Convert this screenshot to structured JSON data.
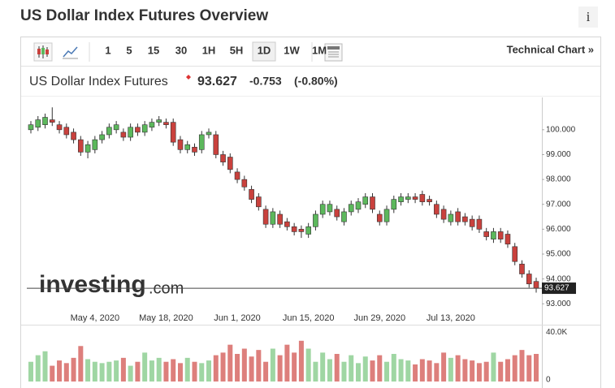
{
  "header": {
    "title": "US Dollar Index Futures Overview",
    "info_icon": "i"
  },
  "toolbar": {
    "intervals": [
      "1",
      "5",
      "15",
      "30",
      "1H",
      "5H",
      "1D",
      "1W",
      "1M"
    ],
    "active": "1D",
    "link": "Technical Chart »"
  },
  "quote": {
    "name": "US Dollar Index Futures",
    "change": "-0.753",
    "change_pct": "(-0.80%)"
  },
  "watermark": {
    "brand": "investing",
    "suffix": ".com"
  },
  "chart_data": {
    "type": "candlestick",
    "categories": [
      null,
      null,
      null,
      null,
      null,
      null,
      null,
      null,
      null,
      "May 4, 2020",
      null,
      null,
      null,
      null,
      null,
      null,
      null,
      null,
      null,
      "May 18, 2020",
      null,
      null,
      null,
      null,
      null,
      null,
      null,
      null,
      null,
      "Jun 1, 2020",
      null,
      null,
      null,
      null,
      null,
      null,
      null,
      null,
      null,
      "Jun 15, 2020",
      null,
      null,
      null,
      null,
      null,
      null,
      null,
      null,
      null,
      "Jun 29, 2020",
      null,
      null,
      null,
      null,
      null,
      null,
      null,
      null,
      null,
      "Jul 13, 2020",
      null,
      null,
      null,
      null,
      null,
      null,
      null,
      null,
      null,
      null,
      null,
      null
    ],
    "open": [
      100.0,
      100.1,
      100.2,
      100.4,
      100.2,
      100.1,
      99.9,
      99.6,
      99.1,
      99.2,
      99.6,
      99.8,
      100.0,
      99.9,
      99.7,
      100.1,
      99.9,
      100.1,
      100.3,
      100.3,
      100.3,
      99.6,
      99.2,
      99.3,
      99.2,
      99.8,
      99.8,
      99.0,
      98.9,
      98.3,
      98.0,
      97.6,
      97.3,
      96.8,
      96.2,
      96.6,
      96.3,
      96.1,
      96.0,
      95.8,
      96.1,
      96.6,
      96.7,
      96.8,
      96.3,
      96.7,
      96.8,
      97.0,
      97.3,
      96.6,
      96.3,
      96.8,
      97.1,
      97.2,
      97.3,
      97.4,
      97.2,
      97.0,
      96.8,
      96.3,
      96.7,
      96.5,
      96.4,
      96.4,
      95.9,
      95.6,
      95.9,
      95.8,
      95.3,
      94.6,
      94.2,
      93.9
    ],
    "high": [
      100.35,
      100.55,
      100.65,
      100.9,
      100.35,
      100.25,
      100.05,
      99.75,
      99.55,
      99.75,
      99.95,
      100.25,
      100.35,
      100.05,
      100.25,
      100.25,
      100.35,
      100.45,
      100.55,
      100.45,
      100.45,
      99.75,
      99.55,
      99.45,
      99.95,
      100.05,
      99.95,
      99.15,
      99.05,
      98.45,
      98.15,
      97.75,
      97.45,
      96.95,
      96.85,
      96.75,
      96.45,
      96.25,
      96.15,
      96.25,
      96.75,
      97.15,
      97.15,
      96.95,
      96.85,
      97.15,
      97.25,
      97.45,
      97.45,
      96.75,
      96.95,
      97.35,
      97.45,
      97.45,
      97.45,
      97.55,
      97.35,
      97.15,
      96.95,
      96.75,
      96.85,
      96.65,
      96.55,
      96.55,
      96.05,
      96.05,
      96.05,
      95.95,
      95.45,
      94.75,
      94.35,
      94.05
    ],
    "low": [
      99.85,
      99.95,
      100.05,
      100.15,
      99.85,
      99.65,
      99.45,
      98.95,
      98.85,
      99.05,
      99.45,
      99.65,
      99.85,
      99.55,
      99.55,
      99.75,
      99.75,
      99.95,
      100.15,
      100.05,
      99.35,
      99.05,
      99.05,
      98.95,
      99.05,
      99.65,
      98.85,
      98.55,
      98.25,
      97.85,
      97.55,
      97.05,
      96.75,
      96.05,
      96.05,
      96.05,
      95.95,
      95.75,
      95.65,
      95.65,
      95.95,
      96.45,
      96.55,
      96.35,
      96.15,
      96.55,
      96.65,
      96.85,
      96.65,
      96.15,
      96.15,
      96.65,
      96.95,
      97.05,
      97.05,
      96.95,
      96.95,
      96.45,
      96.25,
      96.15,
      96.15,
      96.15,
      95.95,
      95.85,
      95.55,
      95.45,
      95.45,
      95.25,
      94.55,
      94.05,
      93.65,
      93.45
    ],
    "close": [
      100.2,
      100.4,
      100.5,
      100.3,
      100.0,
      99.8,
      99.6,
      99.1,
      99.4,
      99.6,
      99.8,
      100.1,
      100.2,
      99.7,
      100.1,
      99.9,
      100.2,
      100.3,
      100.4,
      100.2,
      99.5,
      99.2,
      99.4,
      99.1,
      99.8,
      99.9,
      99.0,
      98.7,
      98.4,
      98.0,
      97.7,
      97.2,
      96.9,
      96.2,
      96.7,
      96.2,
      96.1,
      95.9,
      95.9,
      96.1,
      96.6,
      97.0,
      97.0,
      96.5,
      96.7,
      97.0,
      97.1,
      97.3,
      96.8,
      96.3,
      96.8,
      97.2,
      97.3,
      97.3,
      97.2,
      97.1,
      97.1,
      96.6,
      96.4,
      96.6,
      96.3,
      96.3,
      96.1,
      96.0,
      95.7,
      95.9,
      95.6,
      95.4,
      94.7,
      94.2,
      93.8,
      93.627
    ],
    "up_color": "#5cb85c",
    "down_color": "#c9413d",
    "ylim": [
      92.65,
      101.3
    ],
    "yticks": [
      {
        "value": 93,
        "label": "93.000"
      },
      {
        "value": 94,
        "label": "94.000"
      },
      {
        "value": 95,
        "label": "95.000"
      },
      {
        "value": 96,
        "label": "96.000"
      },
      {
        "value": 97,
        "label": "97.000"
      },
      {
        "value": 98,
        "label": "98.000"
      },
      {
        "value": 99,
        "label": "99.000"
      },
      {
        "value": 100,
        "label": "100.000"
      }
    ],
    "last_price": 93.627,
    "grid": false,
    "volume": {
      "values": [
        15000,
        20000,
        23000,
        12000,
        16000,
        14000,
        18000,
        27000,
        17000,
        15000,
        14000,
        15000,
        16000,
        18000,
        12000,
        15000,
        22000,
        16000,
        18000,
        15000,
        17000,
        14000,
        18000,
        15000,
        14000,
        16000,
        20000,
        22000,
        28000,
        21000,
        25000,
        19000,
        24000,
        15000,
        25000,
        20000,
        28000,
        22000,
        31000,
        25000,
        15000,
        22000,
        17000,
        21000,
        15000,
        20000,
        14000,
        19000,
        16000,
        20000,
        15000,
        21000,
        17000,
        16000,
        13000,
        17000,
        16000,
        14000,
        22000,
        18000,
        20000,
        17000,
        16000,
        14000,
        15000,
        22000,
        15000,
        17000,
        20000,
        24000,
        20000,
        21000
      ],
      "up_color": "#9fd6a3",
      "down_color": "#dd7f7c",
      "ylim": [
        0,
        42000
      ],
      "yticks": [
        0,
        {
          "value": 40000,
          "label": "40.0K"
        }
      ]
    }
  }
}
